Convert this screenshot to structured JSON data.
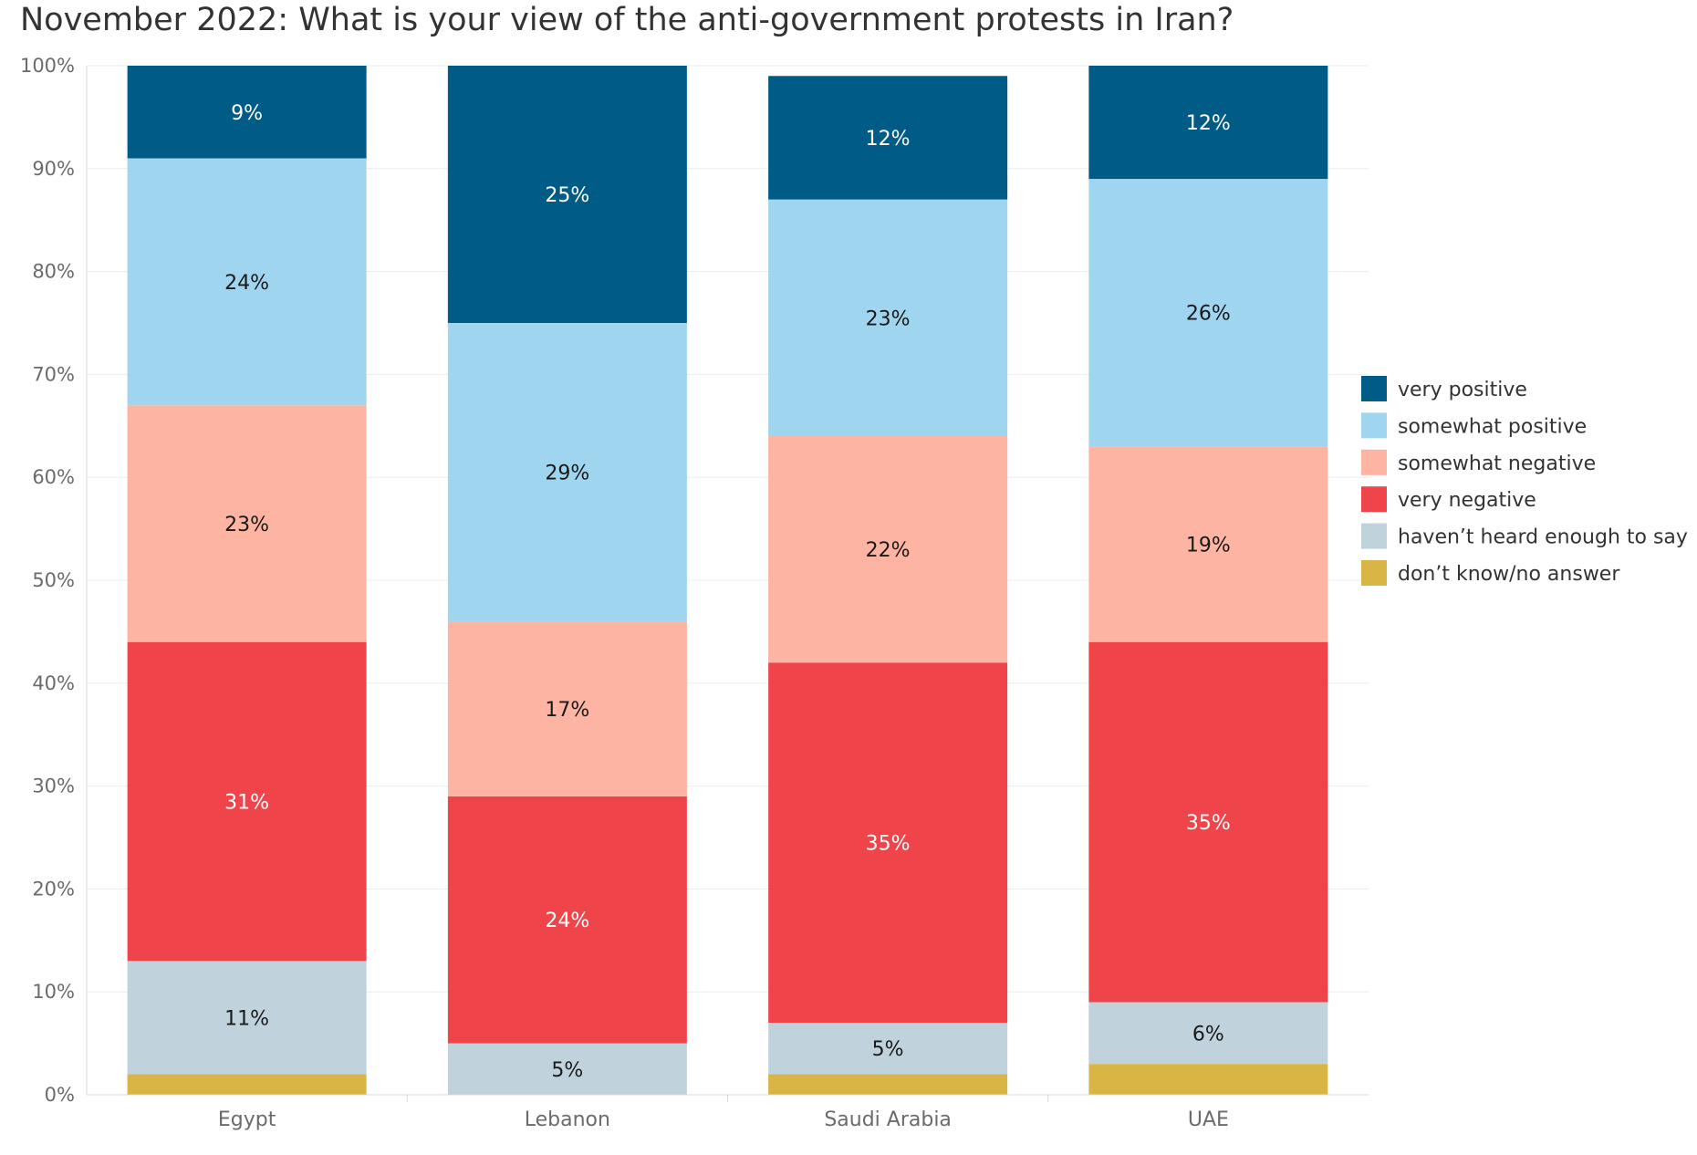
{
  "chart_data": {
    "type": "bar",
    "stacked": true,
    "title": "November 2022: What is your view of the anti-government protests in Iran?",
    "categories": [
      "Egypt",
      "Lebanon",
      "Saudi Arabia",
      "UAE"
    ],
    "series": [
      {
        "name": "don’t know/no answer",
        "color": "#d9b545",
        "label_color": "#1a1a1a",
        "values": [
          2,
          0,
          2,
          3
        ],
        "labels": [
          "",
          "",
          "",
          ""
        ]
      },
      {
        "name": "haven’t heard enough to say",
        "color": "#c0d2dc",
        "label_color": "#1a1a1a",
        "values": [
          11,
          5,
          5,
          6
        ],
        "labels": [
          "11%",
          "5%",
          "5%",
          "6%"
        ]
      },
      {
        "name": "very negative",
        "color": "#f0444b",
        "label_color": "#ffffff",
        "values": [
          31,
          24,
          35,
          35
        ],
        "labels": [
          "31%",
          "24%",
          "35%",
          "35%"
        ]
      },
      {
        "name": "somewhat negative",
        "color": "#fdb4a2",
        "label_color": "#1a1a1a",
        "values": [
          23,
          17,
          22,
          19
        ],
        "labels": [
          "23%",
          "17%",
          "22%",
          "19%"
        ]
      },
      {
        "name": "somewhat positive",
        "color": "#a0d5ef",
        "label_color": "#1a1a1a",
        "values": [
          24,
          29,
          23,
          26
        ],
        "labels": [
          "24%",
          "29%",
          "23%",
          "26%"
        ]
      },
      {
        "name": "very positive",
        "color": "#005b86",
        "label_color": "#ffffff",
        "values": [
          9,
          25,
          12,
          12
        ],
        "labels": [
          "9%",
          "25%",
          "12%",
          "12%"
        ]
      }
    ],
    "legend_order": [
      "very positive",
      "somewhat positive",
      "somewhat negative",
      "very negative",
      "haven’t heard enough to say",
      "don’t know/no answer"
    ],
    "y_ticks": [
      "0%",
      "10%",
      "20%",
      "30%",
      "40%",
      "50%",
      "60%",
      "70%",
      "80%",
      "90%",
      "100%"
    ],
    "ylim": [
      0,
      100
    ],
    "grid": true,
    "legend_position": "right"
  }
}
